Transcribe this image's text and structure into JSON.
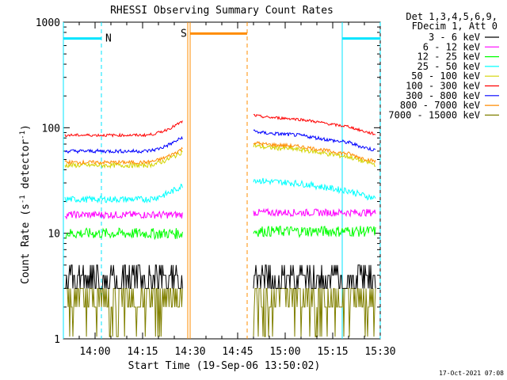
{
  "chart_data": {
    "type": "line",
    "title": "RHESSI Observing Summary Count Rates",
    "xlabel": "Start Time (19-Sep-06 13:50:02)",
    "ylabel_main": "Count Rate (s",
    "ylabel_sup1": "-1",
    "ylabel_mid": " detector",
    "ylabel_sup2": "-1",
    "ylabel_end": ")",
    "yscale": "log",
    "ylim": [
      1,
      1000
    ],
    "xlim_minutes": [
      0,
      100
    ],
    "xticks": [
      {
        "label": "14:00",
        "minute": 10
      },
      {
        "label": "14:15",
        "minute": 25
      },
      {
        "label": "14:30",
        "minute": 40
      },
      {
        "label": "14:45",
        "minute": 55
      },
      {
        "label": "15:00",
        "minute": 70
      },
      {
        "label": "15:15",
        "minute": 85
      },
      {
        "label": "15:30",
        "minute": 100
      }
    ],
    "yticks": [
      {
        "label": "1",
        "value": 1
      },
      {
        "label": "10",
        "value": 10
      },
      {
        "label": "100",
        "value": 100
      },
      {
        "label": "1000",
        "value": 1000
      }
    ],
    "legend_header": [
      "Det 1,3,4,5,6,9,",
      "FDecim 1, Att 0"
    ],
    "data_gap_minutes": [
      37.6,
      60
    ],
    "series": [
      {
        "name": "3 - 6 keV",
        "color": "#000000",
        "level": 3.9,
        "noise": 0.45,
        "kind": "noisy"
      },
      {
        "name": "6 - 12 keV",
        "color": "#ff00ff",
        "level": 15,
        "noise": 0.08,
        "kind": "flat"
      },
      {
        "name": "12 - 25 keV",
        "color": "#00ff00",
        "level": 10,
        "noise": 0.12,
        "kind": "flat"
      },
      {
        "name": "25 - 50 keV",
        "color": "#00ffff",
        "level": 21,
        "noise": 0.07,
        "kind": "rise"
      },
      {
        "name": "50 - 100 keV",
        "color": "#d4d400",
        "level": 44,
        "noise": 0.05,
        "kind": "rise"
      },
      {
        "name": "100 - 300 keV",
        "color": "#ff0000",
        "level": 85,
        "noise": 0.03,
        "kind": "rise"
      },
      {
        "name": "300 - 800 keV",
        "color": "#0000ff",
        "level": 60,
        "noise": 0.04,
        "kind": "rise"
      },
      {
        "name": "800 - 7000 keV",
        "color": "#ff8c00",
        "level": 47,
        "noise": 0.04,
        "kind": "rise"
      },
      {
        "name": "7000 - 15000 keV",
        "color": "#808000",
        "level": 2.6,
        "noise": 0.2,
        "kind": "olive"
      }
    ],
    "annotations": {
      "saa_label": "S",
      "night_label": "N",
      "night_color": "#00e5ff",
      "saa_color": "#ff8c00",
      "night_intervals": [
        [
          0,
          12
        ],
        [
          88,
          100
        ]
      ],
      "saa_interval": [
        40,
        58
      ],
      "night_bar_level": 700,
      "saa_bar_level": 780
    },
    "timestamp": "17-Oct-2021 07:08"
  }
}
